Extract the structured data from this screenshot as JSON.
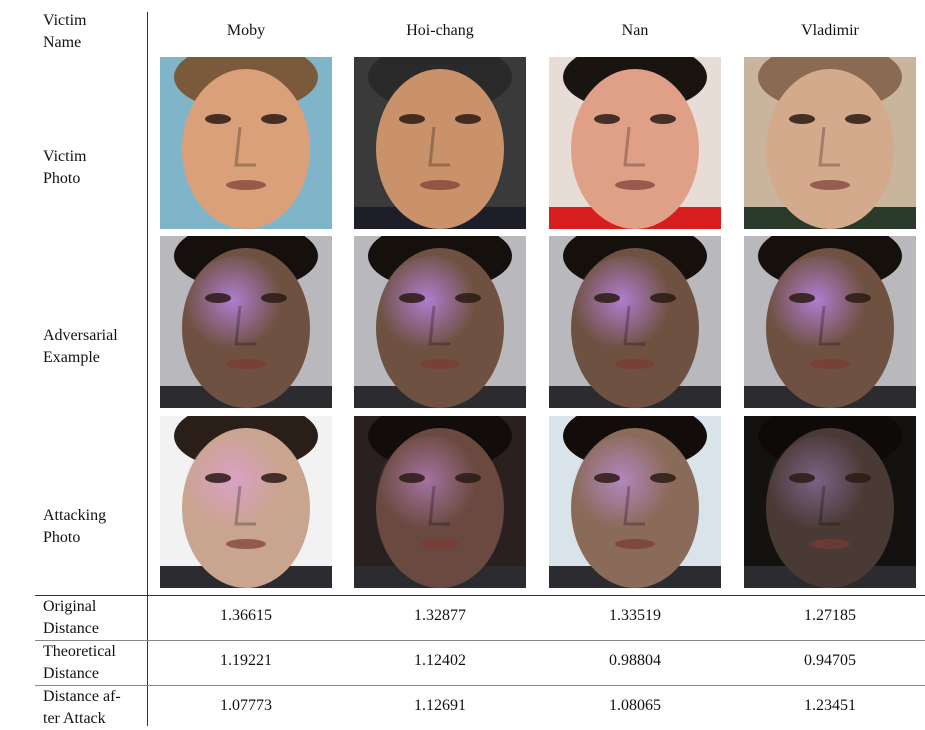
{
  "row_labels": {
    "victim_name": [
      "Victim",
      "Name"
    ],
    "victim_photo": [
      "Victim",
      "Photo"
    ],
    "adversarial_example": [
      "Adversarial",
      "Example"
    ],
    "attacking_photo": [
      "Attacking",
      "Photo"
    ],
    "original_distance": [
      "Original",
      "Distance"
    ],
    "theoretical_distance": [
      "Theoretical",
      "Distance"
    ],
    "distance_after_attack": [
      "Distance af-",
      "ter Attack"
    ]
  },
  "victims": [
    {
      "name": "Moby",
      "original_distance": "1.36615",
      "theoretical_distance": "1.19221",
      "distance_after_attack": "1.07773",
      "photo": {
        "skin": "#d9a07a",
        "hair": "#7a5a3a",
        "bg": "#7fb4c9",
        "shirt": "#7fb4c9"
      }
    },
    {
      "name": "Hoi-chang",
      "original_distance": "1.32877",
      "theoretical_distance": "1.12402",
      "distance_after_attack": "1.12691",
      "photo": {
        "skin": "#c9926a",
        "hair": "#2a2a2a",
        "bg": "#3a3a3a",
        "shirt": "#1e1e28"
      }
    },
    {
      "name": "Nan",
      "original_distance": "1.33519",
      "theoretical_distance": "0.98804",
      "distance_after_attack": "1.08065",
      "photo": {
        "skin": "#e0a088",
        "hair": "#1a1410",
        "bg": "#e8ddd6",
        "shirt": "#d61e1e"
      }
    },
    {
      "name": "Vladimir",
      "original_distance": "1.27185",
      "theoretical_distance": "0.94705",
      "distance_after_attack": "1.23451",
      "photo": {
        "skin": "#d4aa8c",
        "hair": "#8a6a52",
        "bg": "#c9b59e",
        "shirt": "#2a3a2a"
      }
    }
  ],
  "adversarial": {
    "skin": "#6e5140",
    "hair": "#15100c",
    "bg": "#b8b8bd",
    "glow": "#c58cff"
  },
  "attacking": [
    {
      "skin": "#c9a48e",
      "hair": "#2a1e18",
      "bg": "#f2f2f2",
      "glow": "#e0a0d8"
    },
    {
      "skin": "#6a4a40",
      "hair": "#120c0a",
      "bg": "#2a2020",
      "glow": "#b880c0"
    },
    {
      "skin": "#8a6a58",
      "hair": "#120c0a",
      "bg": "#d8e4ea",
      "glow": "#c090e0"
    },
    {
      "skin": "#4a3a36",
      "hair": "#0e0a0a",
      "bg": "#141210",
      "glow": "#8a70a0"
    }
  ]
}
